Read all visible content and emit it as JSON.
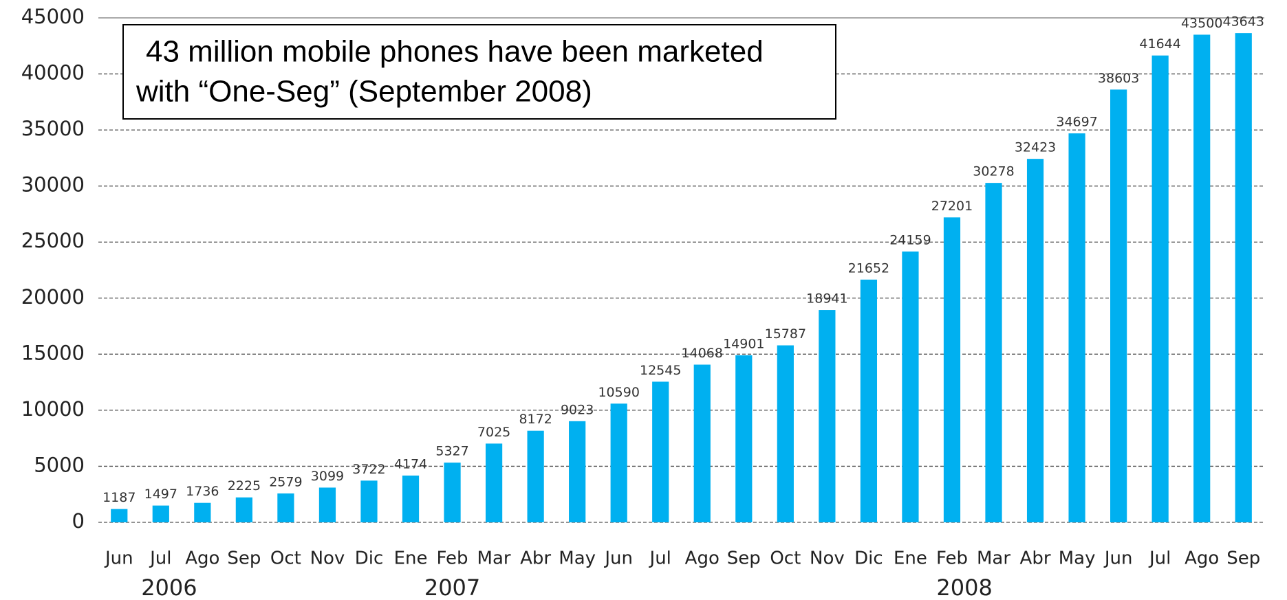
{
  "chart_data": {
    "type": "bar",
    "categories": [
      "Jun",
      "Jul",
      "Ago",
      "Sep",
      "Oct",
      "Nov",
      "Dic",
      "Ene",
      "Feb",
      "Mar",
      "Abr",
      "May",
      "Jun",
      "Jul",
      "Ago",
      "Sep",
      "Oct",
      "Nov",
      "Dic",
      "Ene",
      "Feb",
      "Mar",
      "Abr",
      "May",
      "Jun",
      "Jul",
      "Ago",
      "Sep"
    ],
    "values": [
      1187,
      1497,
      1736,
      2225,
      2579,
      3099,
      3722,
      4174,
      5327,
      7025,
      8172,
      9023,
      10590,
      12545,
      14068,
      14901,
      15787,
      18941,
      21652,
      24159,
      27201,
      30278,
      32423,
      34697,
      38603,
      41644,
      43500,
      43643
    ],
    "color": "#00b0f0",
    "ylim": [
      0,
      45000
    ],
    "yticks": [
      0,
      5000,
      10000,
      15000,
      20000,
      25000,
      30000,
      35000,
      40000,
      45000
    ],
    "grid": true,
    "years": [
      "2006",
      "2007",
      "2008"
    ],
    "annotation": [
      "43 million mobile phones have been marketed",
      "with “One-Seg” (September 2008)"
    ]
  }
}
